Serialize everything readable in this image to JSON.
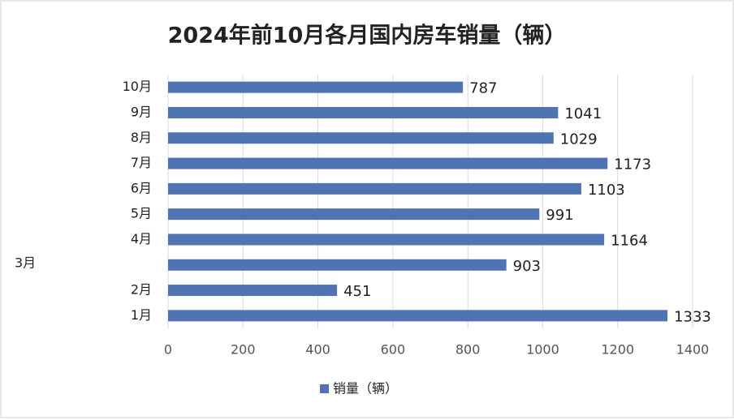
{
  "chart_data": {
    "type": "hbar",
    "title": "2024年前10月各月国内房车销量（辆）",
    "categories": [
      "1月",
      "2月",
      "3月",
      "4月",
      "5月",
      "6月",
      "7月",
      "8月",
      "9月",
      "10月"
    ],
    "series": [
      {
        "name": "销量（辆）",
        "color": "#4f74b3",
        "values": [
          1333,
          451,
          903,
          1164,
          991,
          1103,
          1173,
          1029,
          1041,
          787
        ]
      }
    ],
    "xlim": [
      0,
      1400
    ],
    "xticks": [
      0,
      200,
      400,
      600,
      800,
      1000,
      1200,
      1400
    ],
    "grid": true,
    "legend": "bottom"
  }
}
